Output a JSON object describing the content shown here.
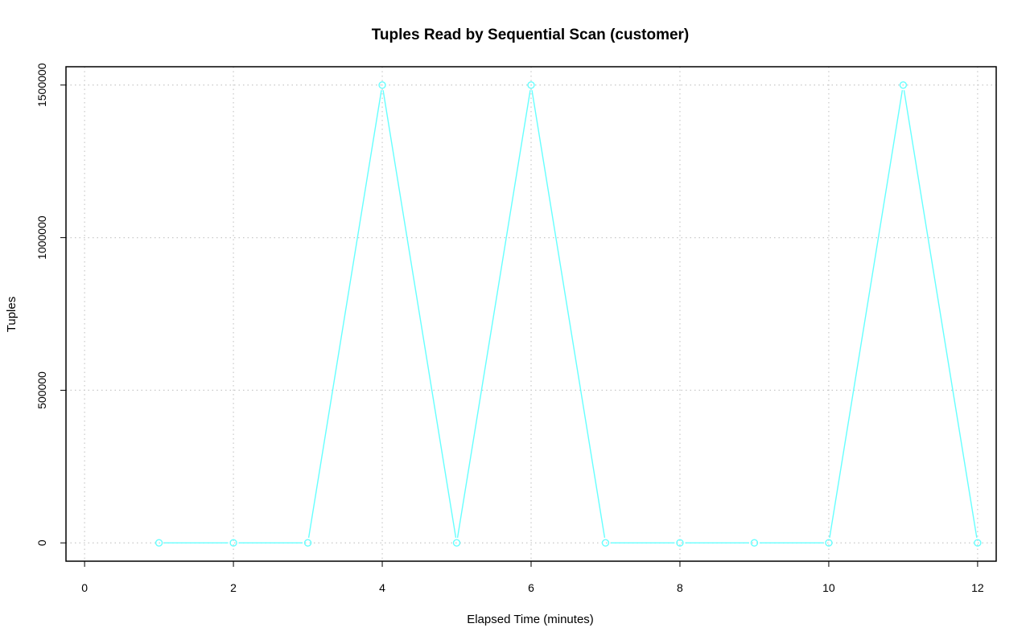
{
  "chart_data": {
    "type": "line",
    "title": "Tuples Read by Sequential Scan (customer)",
    "xlabel": "Elapsed Time (minutes)",
    "ylabel": "Tuples",
    "x_ticks": [
      "0",
      "2",
      "4",
      "6",
      "8",
      "10",
      "12"
    ],
    "y_ticks": [
      "0",
      "500000",
      "1000000",
      "1500000"
    ],
    "xlim": [
      -0.25,
      12.25
    ],
    "ylim": [
      -60000,
      1560000
    ],
    "grid": true,
    "series": [
      {
        "x": [
          1,
          2,
          3,
          4,
          5,
          6,
          7,
          8,
          9,
          10,
          11,
          12
        ],
        "values": [
          0,
          0,
          0,
          1500000,
          0,
          1500000,
          0,
          0,
          0,
          0,
          1500000,
          0
        ],
        "color": "#66ffff"
      }
    ]
  }
}
